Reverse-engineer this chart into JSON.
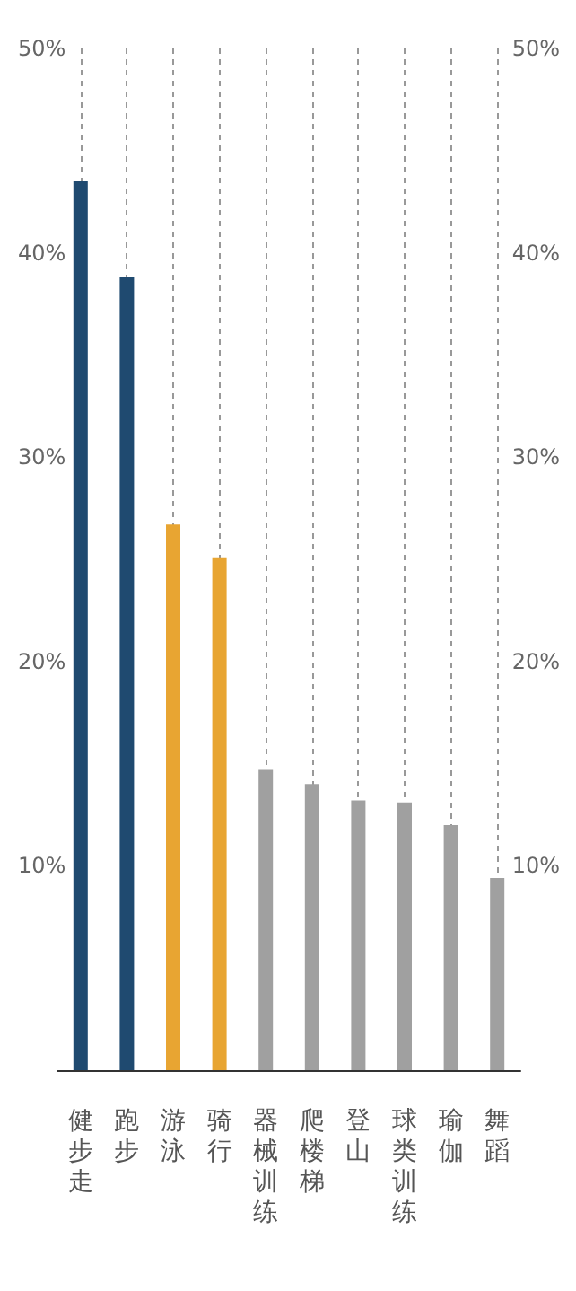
{
  "chart_data": {
    "type": "bar",
    "categories": [
      "健步走",
      "跑步",
      "游泳",
      "骑行",
      "器械训练",
      "爬楼梯",
      "登山",
      "球类训练",
      "瑜伽",
      "舞蹈"
    ],
    "values": [
      43.5,
      38.8,
      26.7,
      25.1,
      14.7,
      14.0,
      13.2,
      13.1,
      12.0,
      9.4
    ],
    "colors": [
      "#1f4a70",
      "#1f4a70",
      "#e8a532",
      "#e8a532",
      "#a0a0a0",
      "#a0a0a0",
      "#a0a0a0",
      "#a0a0a0",
      "#a0a0a0",
      "#a0a0a0"
    ],
    "ylim": [
      0,
      50
    ],
    "yticks": [
      {
        "value": 10,
        "label": "10%"
      },
      {
        "value": 20,
        "label": "20%"
      },
      {
        "value": 30,
        "label": "30%"
      },
      {
        "value": 40,
        "label": "40%"
      },
      {
        "value": 50,
        "label": "50%"
      }
    ],
    "y2lim": [
      0,
      50
    ],
    "y2ticks": [
      {
        "value": 10,
        "label": "10%"
      },
      {
        "value": 20,
        "label": "20%"
      },
      {
        "value": 30,
        "label": "30%"
      },
      {
        "value": 40,
        "label": "40%"
      },
      {
        "value": 50,
        "label": "50%"
      }
    ],
    "grid": "x"
  }
}
